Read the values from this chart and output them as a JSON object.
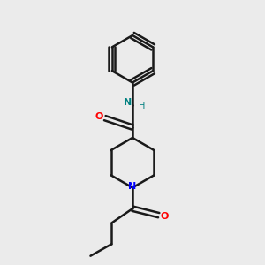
{
  "bg_color": "#ebebeb",
  "bond_color": "#1a1a1a",
  "O_color": "#ff0000",
  "N_color": "#0000ff",
  "NH_color": "#008080",
  "line_width": 1.8,
  "font_size_atom": 8,
  "fig_width": 3.0,
  "fig_height": 3.0,
  "dpi": 100,
  "xlim": [
    0,
    10
  ],
  "ylim": [
    0,
    10
  ]
}
